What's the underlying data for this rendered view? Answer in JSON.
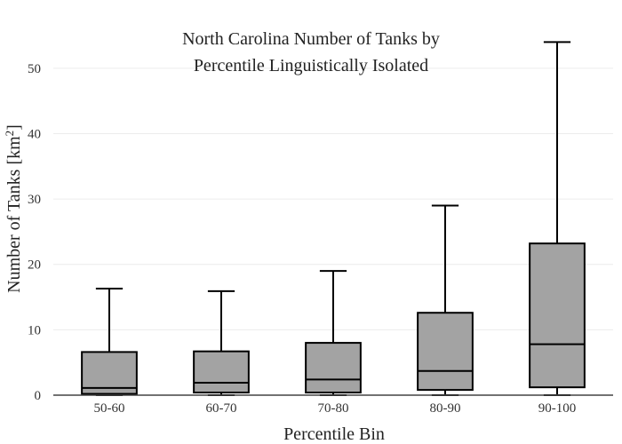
{
  "chart_data": {
    "type": "box",
    "title_lines": [
      "North Carolina Number of Tanks by",
      "Percentile Linguistically Isolated"
    ],
    "xlabel": "Percentile Bin",
    "ylabel": "Number of Tanks  [km",
    "ylabel_sup": "2",
    "ylabel_close": "]",
    "ylim": [
      0,
      55
    ],
    "yticks": [
      0,
      10,
      20,
      30,
      40,
      50
    ],
    "grid": true,
    "categories": [
      "50-60",
      "60-70",
      "70-80",
      "80-90",
      "90-100"
    ],
    "boxes": [
      {
        "category": "50-60",
        "min": 0,
        "q1": 0.2,
        "median": 1.1,
        "q3": 6.6,
        "max": 16.3
      },
      {
        "category": "60-70",
        "min": 0,
        "q1": 0.4,
        "median": 1.9,
        "q3": 6.7,
        "max": 15.9
      },
      {
        "category": "70-80",
        "min": 0,
        "q1": 0.4,
        "median": 2.4,
        "q3": 8.0,
        "max": 19.0
      },
      {
        "category": "80-90",
        "min": 0,
        "q1": 0.8,
        "median": 3.7,
        "q3": 12.6,
        "max": 29.0
      },
      {
        "category": "90-100",
        "min": 0,
        "q1": 1.2,
        "median": 7.8,
        "q3": 23.2,
        "max": 54.0
      }
    ],
    "colors": {
      "box_fill": "#a3a3a3",
      "box_stroke": "#000000",
      "grid": "#ececec"
    }
  }
}
